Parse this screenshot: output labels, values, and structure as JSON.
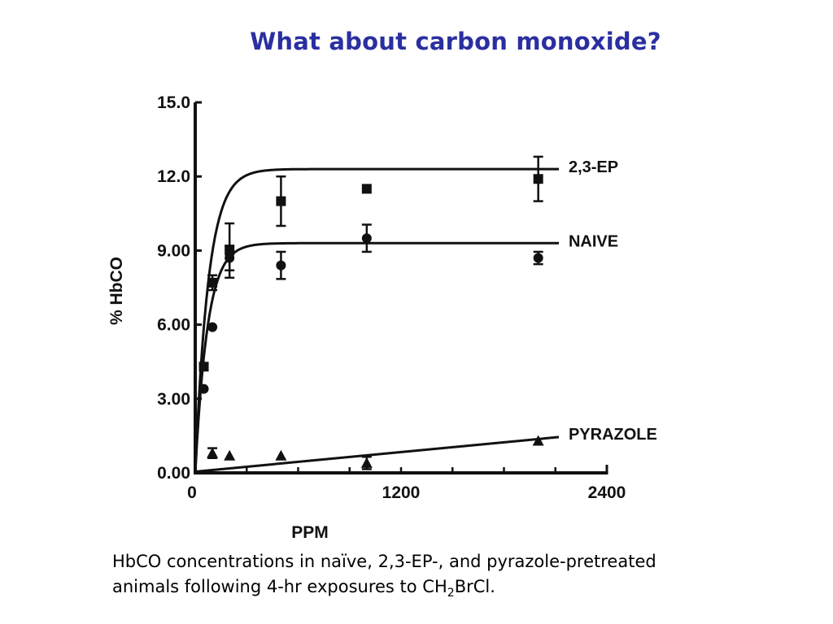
{
  "slide": {
    "title": "What about carbon monoxide?"
  },
  "caption": {
    "line1": "HbCO concentrations in naïve, 2,3-EP-, and pyrazole-pretreated",
    "line2_prefix": "animals following 4-hr exposures to CH",
    "line2_sub": "2",
    "line2_suffix": "BrCl."
  },
  "chart_data": {
    "type": "scatter",
    "xlabel": "PPM",
    "ylabel": "% HbCO",
    "xlim": [
      0,
      2400
    ],
    "ylim": [
      0,
      15
    ],
    "x_ticks": [
      {
        "value": 0,
        "label": "0"
      },
      {
        "value": 1200,
        "label": "1200"
      },
      {
        "value": 2400,
        "label": "2400"
      }
    ],
    "y_ticks": [
      {
        "value": 0,
        "label": "0.00"
      },
      {
        "value": 3,
        "label": "3.00"
      },
      {
        "value": 6,
        "label": "6.00"
      },
      {
        "value": 9,
        "label": "9.00"
      },
      {
        "value": 12,
        "label": "12.0"
      },
      {
        "value": 15,
        "label": "15.0"
      }
    ],
    "grid": false,
    "legend": "direct labels at right end of each fitted curve",
    "series": [
      {
        "name": "2,3-EP",
        "marker": "square",
        "curve": {
          "model": "saturating",
          "max": 12.3,
          "k": 0.013
        },
        "points": [
          {
            "x": 50,
            "y": 4.3,
            "err": 0
          },
          {
            "x": 100,
            "y": 7.7,
            "err": 0.3
          },
          {
            "x": 200,
            "y": 9.0,
            "err": 1.1
          },
          {
            "x": 500,
            "y": 11.0,
            "err": 1.0
          },
          {
            "x": 1000,
            "y": 11.5,
            "err": 0
          },
          {
            "x": 2000,
            "y": 11.9,
            "err": 0.9
          }
        ]
      },
      {
        "name": "NAIVE",
        "marker": "circle",
        "curve": {
          "model": "saturating",
          "max": 9.3,
          "k": 0.014
        },
        "points": [
          {
            "x": 50,
            "y": 3.4,
            "err": 0
          },
          {
            "x": 100,
            "y": 5.9,
            "err": 0
          },
          {
            "x": 200,
            "y": 8.7,
            "err": 0.5
          },
          {
            "x": 500,
            "y": 8.4,
            "err": 0.55
          },
          {
            "x": 1000,
            "y": 9.5,
            "err": 0.55
          },
          {
            "x": 2000,
            "y": 8.7,
            "err": 0.25
          }
        ]
      },
      {
        "name": "PYRAZOLE",
        "marker": "triangle",
        "curve": {
          "model": "linear",
          "y0": 0.05,
          "slope": 0.00066
        },
        "points": [
          {
            "x": 100,
            "y": 0.8,
            "err": 0.2
          },
          {
            "x": 200,
            "y": 0.7,
            "err": 0
          },
          {
            "x": 500,
            "y": 0.7,
            "err": 0
          },
          {
            "x": 1000,
            "y": 0.4,
            "err": 0.25
          },
          {
            "x": 2000,
            "y": 1.3,
            "err": 0
          }
        ]
      }
    ]
  }
}
